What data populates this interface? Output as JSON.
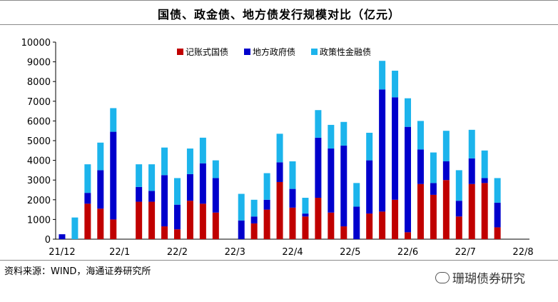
{
  "title": "国债、政金债、地方债发行规模对比（亿元）",
  "source": "资料来源：WIND，海通证券研究所",
  "watermark": "珊瑚债券研究",
  "colors": {
    "treasury": "#c00000",
    "local": "#0000cc",
    "policy": "#1cb4ec"
  },
  "chart_data": {
    "type": "bar",
    "stacked": true,
    "ylim": [
      0,
      10000
    ],
    "yticks": [
      0,
      1000,
      2000,
      3000,
      4000,
      5000,
      6000,
      7000,
      8000,
      9000,
      10000
    ],
    "xtick_labels": [
      {
        "label": "21/12",
        "index": 0
      },
      {
        "label": "22/1",
        "index": 4.5
      },
      {
        "label": "22/2",
        "index": 9
      },
      {
        "label": "22/3",
        "index": 13.5
      },
      {
        "label": "22/4",
        "index": 18
      },
      {
        "label": "22/5",
        "index": 22.5
      },
      {
        "label": "22/6",
        "index": 27
      },
      {
        "label": "22/7",
        "index": 31.5
      },
      {
        "label": "22/8",
        "index": 36
      }
    ],
    "slots": 37,
    "series": [
      {
        "name": "记账式国债",
        "key": "treasury"
      },
      {
        "name": "地方政府债",
        "key": "local"
      },
      {
        "name": "政策性金融债",
        "key": "policy"
      }
    ],
    "bars": [
      {
        "slot": 0,
        "treasury": 0,
        "local": 250,
        "policy": 0
      },
      {
        "slot": 1,
        "treasury": 0,
        "local": 0,
        "policy": 1100
      },
      {
        "slot": 2,
        "treasury": 1800,
        "local": 550,
        "policy": 1450
      },
      {
        "slot": 3,
        "treasury": 1550,
        "local": 1950,
        "policy": 1400
      },
      {
        "slot": 4,
        "treasury": 1000,
        "local": 4450,
        "policy": 1200
      },
      {
        "slot": 6,
        "treasury": 1900,
        "local": 750,
        "policy": 1150
      },
      {
        "slot": 7,
        "treasury": 1900,
        "local": 550,
        "policy": 1350
      },
      {
        "slot": 8,
        "treasury": 650,
        "local": 2600,
        "policy": 1400
      },
      {
        "slot": 9,
        "treasury": 500,
        "local": 1250,
        "policy": 1350
      },
      {
        "slot": 10,
        "treasury": 1950,
        "local": 1350,
        "policy": 1300
      },
      {
        "slot": 11,
        "treasury": 1800,
        "local": 2050,
        "policy": 1300
      },
      {
        "slot": 12,
        "treasury": 1350,
        "local": 1750,
        "policy": 900
      },
      {
        "slot": 14,
        "treasury": 0,
        "local": 950,
        "policy": 1350
      },
      {
        "slot": 15,
        "treasury": 800,
        "local": 350,
        "policy": 850
      },
      {
        "slot": 16,
        "treasury": 1500,
        "local": 500,
        "policy": 1350
      },
      {
        "slot": 17,
        "treasury": 2900,
        "local": 1000,
        "policy": 1450
      },
      {
        "slot": 18,
        "treasury": 1600,
        "local": 950,
        "policy": 1400
      },
      {
        "slot": 19,
        "treasury": 1150,
        "local": 150,
        "policy": 800
      },
      {
        "slot": 20,
        "treasury": 2100,
        "local": 3050,
        "policy": 1400
      },
      {
        "slot": 21,
        "treasury": 1350,
        "local": 3250,
        "policy": 1200
      },
      {
        "slot": 22,
        "treasury": 650,
        "local": 4100,
        "policy": 1200
      },
      {
        "slot": 23,
        "treasury": 0,
        "local": 1650,
        "policy": 1200
      },
      {
        "slot": 24,
        "treasury": 1300,
        "local": 2700,
        "policy": 1400
      },
      {
        "slot": 25,
        "treasury": 1400,
        "local": 6200,
        "policy": 1450
      },
      {
        "slot": 26,
        "treasury": 2000,
        "local": 5200,
        "policy": 1350
      },
      {
        "slot": 27,
        "treasury": 350,
        "local": 5350,
        "policy": 1450
      },
      {
        "slot": 28,
        "treasury": 2800,
        "local": 1750,
        "policy": 1450
      },
      {
        "slot": 29,
        "treasury": 2250,
        "local": 600,
        "policy": 1550
      },
      {
        "slot": 30,
        "treasury": 3000,
        "local": 950,
        "policy": 1550
      },
      {
        "slot": 31,
        "treasury": 1150,
        "local": 800,
        "policy": 1550
      },
      {
        "slot": 32,
        "treasury": 2800,
        "local": 1300,
        "policy": 1450
      },
      {
        "slot": 33,
        "treasury": 2850,
        "local": 250,
        "policy": 1400
      },
      {
        "slot": 34,
        "treasury": 600,
        "local": 1250,
        "policy": 1250
      }
    ]
  }
}
